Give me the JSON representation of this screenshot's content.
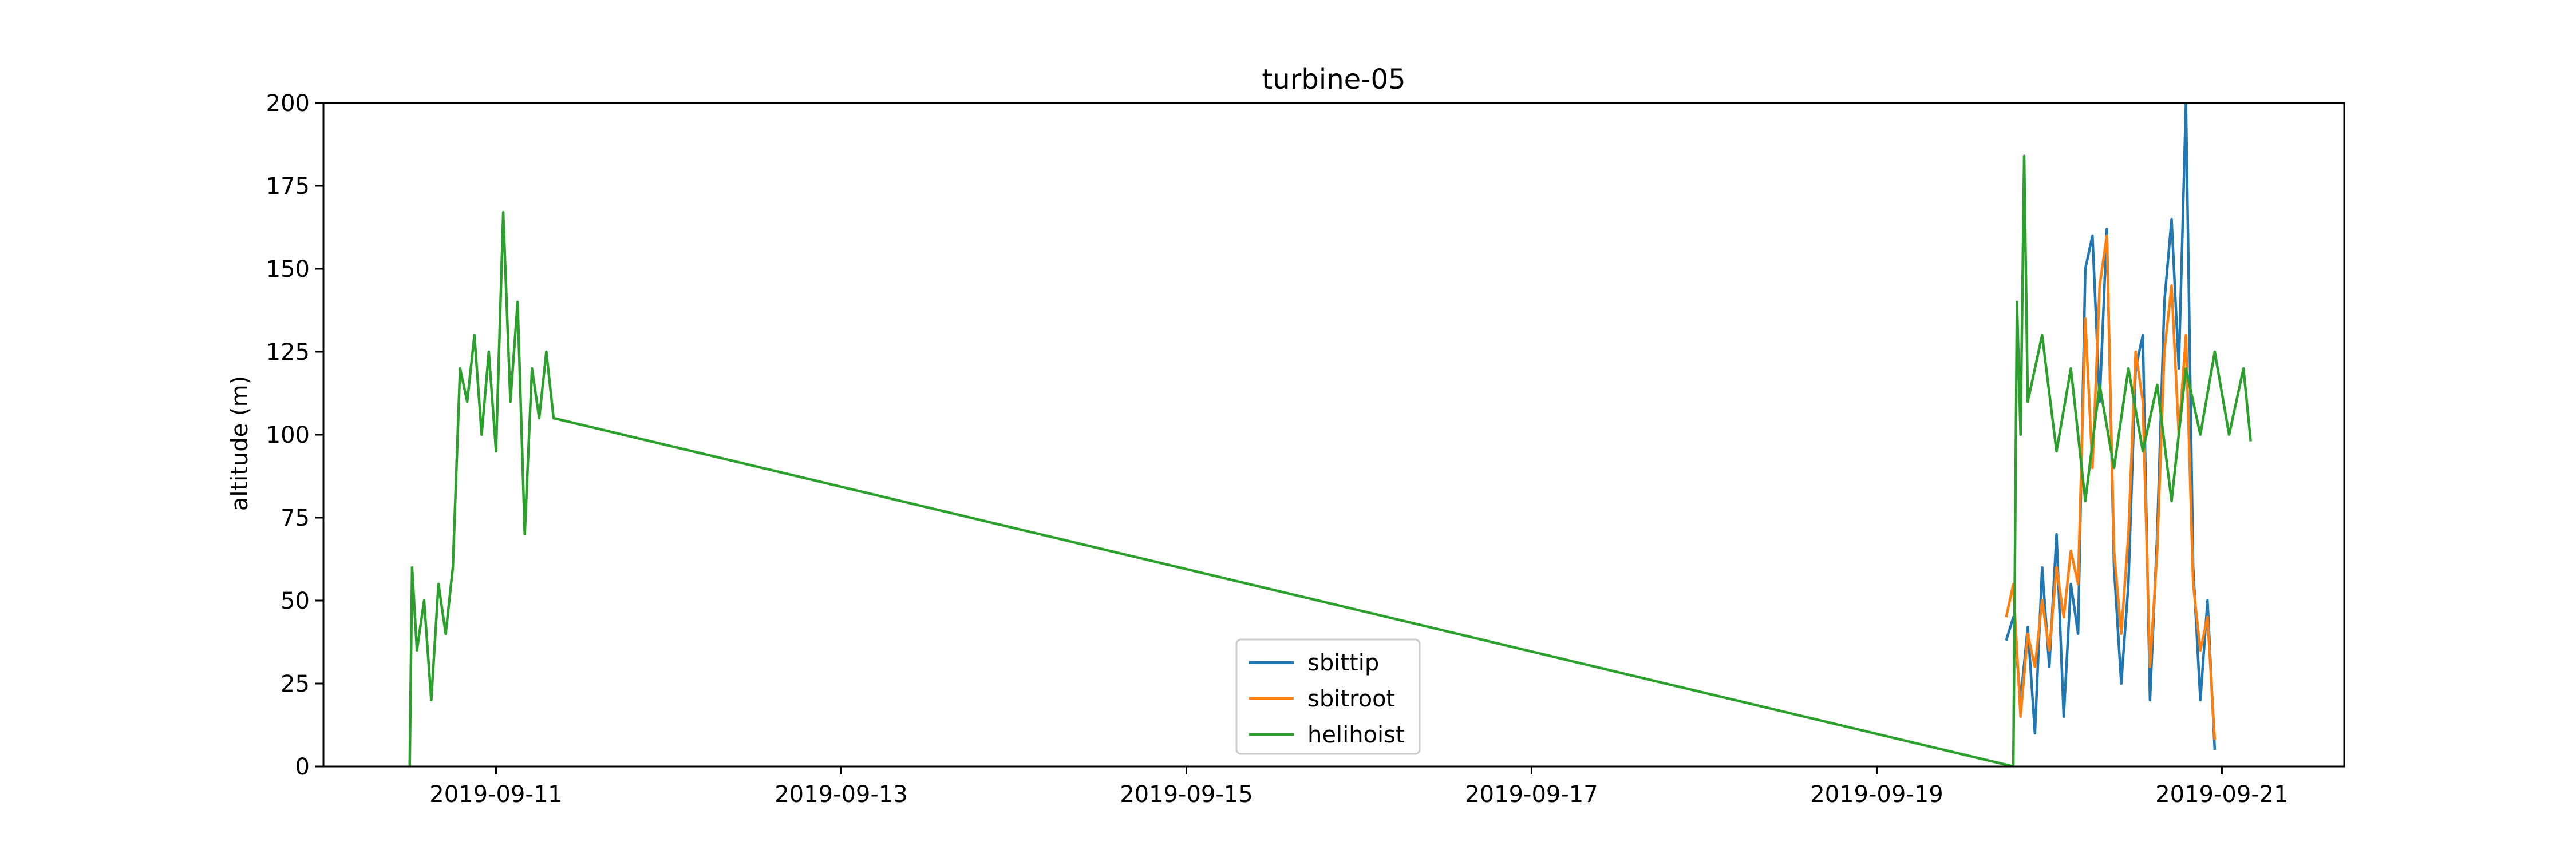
{
  "chart_data": {
    "type": "line",
    "title": "turbine-05",
    "xlabel": "",
    "ylabel": "altitude (m)",
    "xlim": [
      "2019-09-10T00:00",
      "2019-09-21T17:00"
    ],
    "ylim": [
      0,
      200
    ],
    "xticks": [
      "2019-09-11",
      "2019-09-13",
      "2019-09-15",
      "2019-09-17",
      "2019-09-19",
      "2019-09-21"
    ],
    "yticks": [
      0,
      25,
      50,
      75,
      100,
      125,
      150,
      175,
      200
    ],
    "grid": false,
    "legend": {
      "placement": "lower-center",
      "entries": [
        "sbittip",
        "sbitroot",
        "helihoist"
      ]
    },
    "colors": {
      "sbittip": "#1f77b4",
      "sbitroot": "#ff7f0e",
      "helihoist": "#2ca02c"
    },
    "series": [
      {
        "name": "sbittip",
        "color": "#1f77b4",
        "points": [
          [
            "2019-09-19T18:00",
            38
          ],
          [
            "2019-09-19T19:00",
            45
          ],
          [
            "2019-09-19T20:00",
            20
          ],
          [
            "2019-09-19T21:00",
            42
          ],
          [
            "2019-09-19T22:00",
            10
          ],
          [
            "2019-09-19T23:00",
            60
          ],
          [
            "2019-09-20T00:00",
            30
          ],
          [
            "2019-09-20T01:00",
            70
          ],
          [
            "2019-09-20T02:00",
            15
          ],
          [
            "2019-09-20T03:00",
            55
          ],
          [
            "2019-09-20T04:00",
            40
          ],
          [
            "2019-09-20T05:00",
            150
          ],
          [
            "2019-09-20T06:00",
            160
          ],
          [
            "2019-09-20T07:00",
            110
          ],
          [
            "2019-09-20T08:00",
            162
          ],
          [
            "2019-09-20T09:00",
            60
          ],
          [
            "2019-09-20T10:00",
            25
          ],
          [
            "2019-09-20T11:00",
            55
          ],
          [
            "2019-09-20T12:00",
            120
          ],
          [
            "2019-09-20T13:00",
            130
          ],
          [
            "2019-09-20T14:00",
            20
          ],
          [
            "2019-09-20T15:00",
            70
          ],
          [
            "2019-09-20T16:00",
            140
          ],
          [
            "2019-09-20T17:00",
            165
          ],
          [
            "2019-09-20T18:00",
            120
          ],
          [
            "2019-09-20T19:00",
            200
          ],
          [
            "2019-09-20T20:00",
            60
          ],
          [
            "2019-09-20T21:00",
            20
          ],
          [
            "2019-09-20T22:00",
            50
          ],
          [
            "2019-09-20T23:00",
            5
          ]
        ]
      },
      {
        "name": "sbitroot",
        "color": "#ff7f0e",
        "points": [
          [
            "2019-09-19T18:00",
            45
          ],
          [
            "2019-09-19T19:00",
            55
          ],
          [
            "2019-09-19T20:00",
            15
          ],
          [
            "2019-09-19T21:00",
            40
          ],
          [
            "2019-09-19T22:00",
            30
          ],
          [
            "2019-09-19T23:00",
            50
          ],
          [
            "2019-09-20T00:00",
            35
          ],
          [
            "2019-09-20T01:00",
            60
          ],
          [
            "2019-09-20T02:00",
            45
          ],
          [
            "2019-09-20T03:00",
            65
          ],
          [
            "2019-09-20T04:00",
            55
          ],
          [
            "2019-09-20T05:00",
            135
          ],
          [
            "2019-09-20T06:00",
            90
          ],
          [
            "2019-09-20T07:00",
            145
          ],
          [
            "2019-09-20T08:00",
            160
          ],
          [
            "2019-09-20T09:00",
            65
          ],
          [
            "2019-09-20T10:00",
            40
          ],
          [
            "2019-09-20T11:00",
            70
          ],
          [
            "2019-09-20T12:00",
            125
          ],
          [
            "2019-09-20T13:00",
            110
          ],
          [
            "2019-09-20T14:00",
            30
          ],
          [
            "2019-09-20T15:00",
            65
          ],
          [
            "2019-09-20T16:00",
            125
          ],
          [
            "2019-09-20T17:00",
            145
          ],
          [
            "2019-09-20T18:00",
            100
          ],
          [
            "2019-09-20T19:00",
            130
          ],
          [
            "2019-09-20T20:00",
            55
          ],
          [
            "2019-09-20T21:00",
            35
          ],
          [
            "2019-09-20T22:00",
            45
          ],
          [
            "2019-09-20T23:00",
            8
          ]
        ]
      },
      {
        "name": "helihoist",
        "color": "#2ca02c",
        "points": [
          [
            "2019-09-10T12:00",
            0
          ],
          [
            "2019-09-10T12:20",
            60
          ],
          [
            "2019-09-10T13:00",
            35
          ],
          [
            "2019-09-10T14:00",
            50
          ],
          [
            "2019-09-10T15:00",
            20
          ],
          [
            "2019-09-10T16:00",
            55
          ],
          [
            "2019-09-10T17:00",
            40
          ],
          [
            "2019-09-10T18:00",
            60
          ],
          [
            "2019-09-10T19:00",
            120
          ],
          [
            "2019-09-10T20:00",
            110
          ],
          [
            "2019-09-10T21:00",
            130
          ],
          [
            "2019-09-10T22:00",
            100
          ],
          [
            "2019-09-10T23:00",
            125
          ],
          [
            "2019-09-11T00:00",
            95
          ],
          [
            "2019-09-11T01:00",
            167
          ],
          [
            "2019-09-11T02:00",
            110
          ],
          [
            "2019-09-11T03:00",
            140
          ],
          [
            "2019-09-11T04:00",
            70
          ],
          [
            "2019-09-11T05:00",
            120
          ],
          [
            "2019-09-11T06:00",
            105
          ],
          [
            "2019-09-11T07:00",
            125
          ],
          [
            "2019-09-11T08:00",
            105
          ],
          [
            "2019-09-19T19:00",
            0
          ],
          [
            "2019-09-19T19:30",
            140
          ],
          [
            "2019-09-19T20:00",
            100
          ],
          [
            "2019-09-19T20:30",
            184
          ],
          [
            "2019-09-19T21:00",
            110
          ],
          [
            "2019-09-19T23:00",
            130
          ],
          [
            "2019-09-20T01:00",
            95
          ],
          [
            "2019-09-20T03:00",
            120
          ],
          [
            "2019-09-20T05:00",
            80
          ],
          [
            "2019-09-20T07:00",
            115
          ],
          [
            "2019-09-20T09:00",
            90
          ],
          [
            "2019-09-20T11:00",
            120
          ],
          [
            "2019-09-20T13:00",
            95
          ],
          [
            "2019-09-20T15:00",
            115
          ],
          [
            "2019-09-20T17:00",
            80
          ],
          [
            "2019-09-20T19:00",
            120
          ],
          [
            "2019-09-20T21:00",
            100
          ],
          [
            "2019-09-20T23:00",
            125
          ],
          [
            "2019-09-21T01:00",
            100
          ],
          [
            "2019-09-21T03:00",
            120
          ],
          [
            "2019-09-21T04:00",
            98
          ]
        ]
      }
    ]
  }
}
